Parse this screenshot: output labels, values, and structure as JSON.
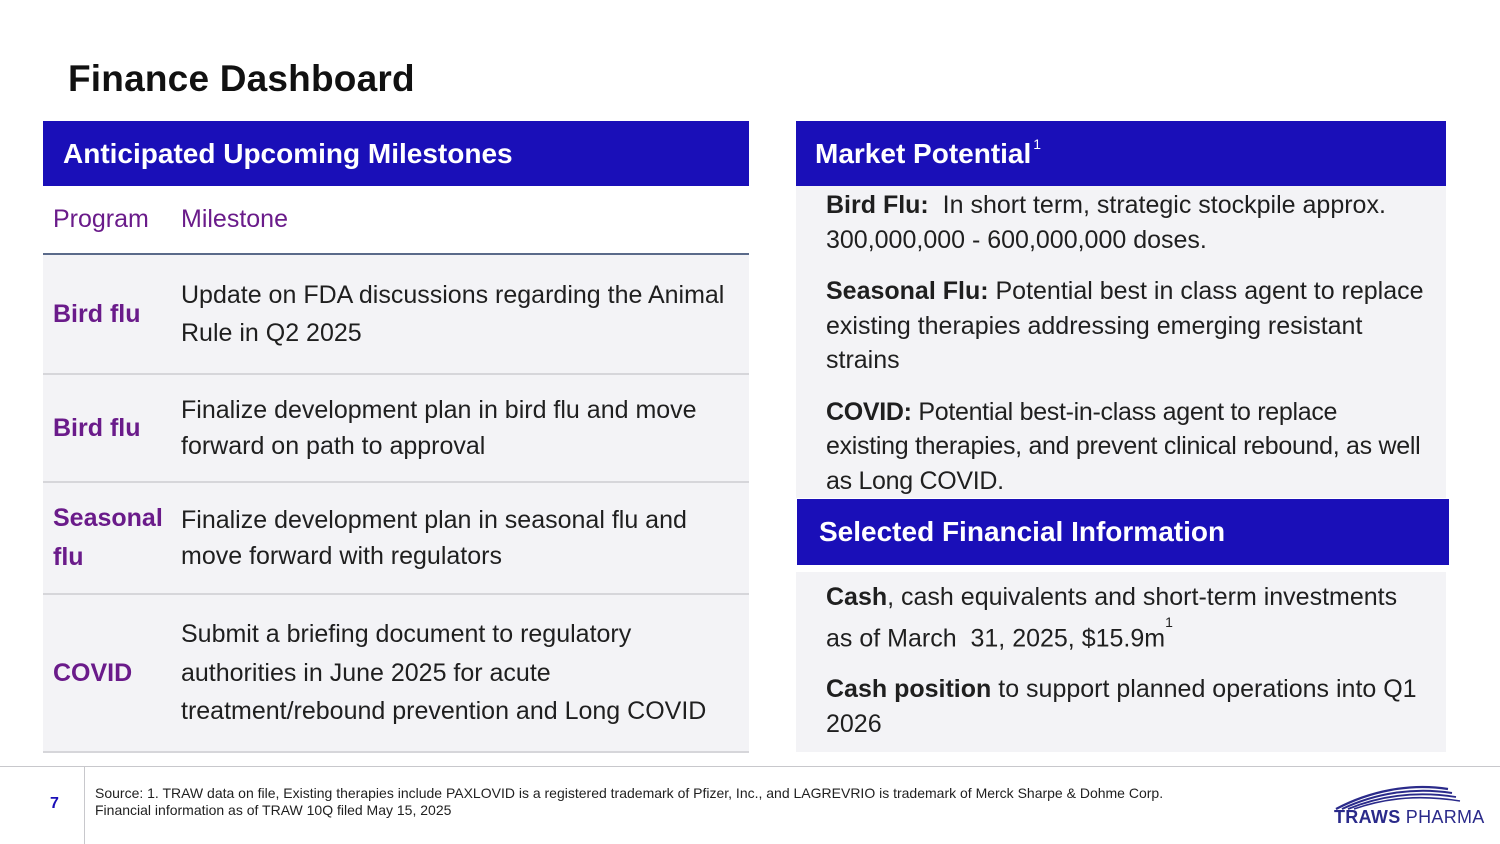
{
  "title": "Finance Dashboard",
  "milestones": {
    "header": "Anticipated Upcoming Milestones",
    "col_program": "Program",
    "col_milestone": "Milestone",
    "rows": [
      {
        "program": "Bird flu",
        "milestone": "Update on FDA discussions regarding the Animal Rule in Q2 2025"
      },
      {
        "program": "Bird flu",
        "milestone": "Finalize development plan in bird flu and move forward on path to approval"
      },
      {
        "program": "Seasonal flu",
        "milestone": "Finalize development plan in seasonal flu and move forward with regulators"
      },
      {
        "program": "COVID",
        "milestone": "Submit a briefing document to regulatory authorities in June 2025 for acute treatment/rebound prevention and Long COVID"
      }
    ]
  },
  "market": {
    "header": "Market Potential",
    "header_sup": "1",
    "items": [
      {
        "label": "Bird Flu:",
        "text": "  In short term, strategic stockpile approx. 300,000,000 - 600,000,000 doses."
      },
      {
        "label": "Seasonal Flu:",
        "text": " Potential best in class agent to replace existing therapies addressing emerging resistant strains"
      },
      {
        "label": "COVID:",
        "text": " Potential best-in-class agent to replace existing therapies, and prevent clinical rebound, as well as Long COVID."
      }
    ]
  },
  "financial": {
    "header": "Selected Financial Information",
    "cash_label": "Cash",
    "cash_text": ", cash equivalents and short-term investments as of March  31, 2025, $15.9m",
    "cash_sup": "1",
    "position_label": "Cash position",
    "position_text": " to support planned operations into Q1 2026"
  },
  "footer": {
    "page_number": "7",
    "source_line1": "Source: 1. TRAW data on file, Existing therapies include PAXLOVID is a registered trademark of Pfizer, Inc., and LAGREVRIO is trademark of Merck Sharpe & Dohme Corp.",
    "source_line2": "Financial information as of TRAW 10Q filed May 15, 2025",
    "logo_bold": "TRAWS",
    "logo_light": " PHARMA"
  },
  "colors": {
    "header_blue": "#1a0fb8",
    "program_purple": "#6a1b8a",
    "panel_bg": "#f3f3f6"
  }
}
